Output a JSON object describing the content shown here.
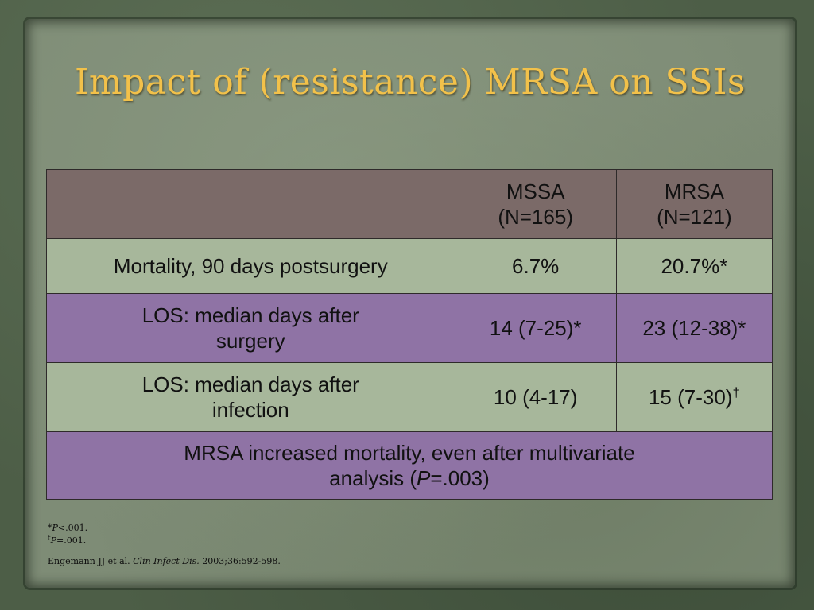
{
  "slide": {
    "title": "Impact of (resistance) MRSA on SSIs"
  },
  "table": {
    "header": {
      "mssa_line1": "MSSA",
      "mssa_line2": "(N=165)",
      "mrsa_line1": "MRSA",
      "mrsa_line2": "(N=121)"
    },
    "rows": [
      {
        "label": "Mortality, 90 days postsurgery",
        "mssa": "6.7%",
        "mrsa": "20.7%*"
      },
      {
        "label_line1": "LOS: median days after",
        "label_line2": "surgery",
        "mssa": "14 (7-25)*",
        "mrsa": "23 (12-38)*"
      },
      {
        "label_line1": "LOS: median days after",
        "label_line2": "infection",
        "mssa": "10 (4-17)",
        "mrsa": "15 (7-30)",
        "mrsa_mark": "†"
      }
    ],
    "note": {
      "line1": "MRSA increased mortality, even after multivariate",
      "line2_pre": "analysis (",
      "line2_p": "P",
      "line2_post": "=.003)"
    }
  },
  "footnotes": {
    "fn1_mark": "*",
    "fn1_p": "P",
    "fn1_text": "<.001.",
    "fn2_mark": "†",
    "fn2_p": "P",
    "fn2_text": "=.001.",
    "citation_authors": "Engemann JJ et al. ",
    "citation_journal": "Clin Infect Dis.",
    "citation_rest": " 2003;36:592-598."
  }
}
